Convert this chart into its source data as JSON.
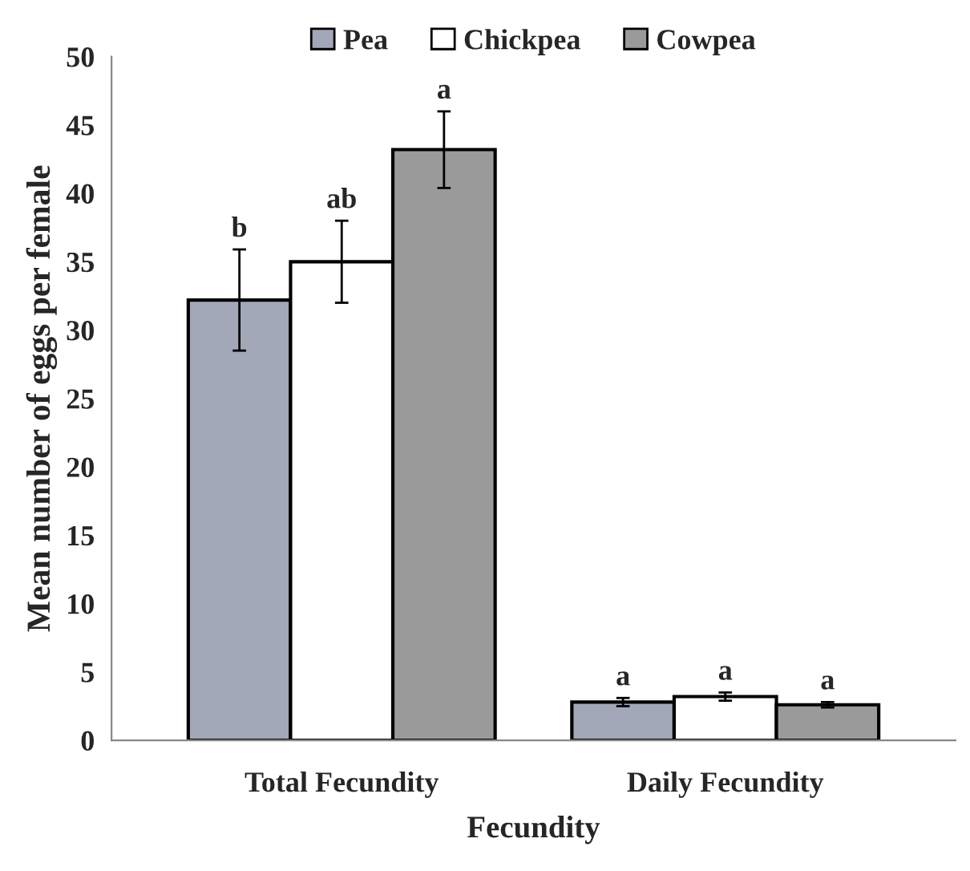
{
  "chart_data": {
    "type": "bar",
    "categories": [
      "Total Fecundity",
      "Daily Fecundity"
    ],
    "series": [
      {
        "name": "Pea",
        "color": "#a3a8b8",
        "values": [
          32.2,
          2.8
        ],
        "errors": [
          3.7,
          0.3
        ]
      },
      {
        "name": "Chickpea",
        "color": "#ffffff",
        "values": [
          35.0,
          3.2
        ],
        "errors": [
          3.0,
          0.3
        ]
      },
      {
        "name": "Cowpea",
        "color": "#9a9a9a",
        "values": [
          43.2,
          2.6
        ],
        "errors": [
          2.8,
          0.2
        ]
      }
    ],
    "xlabel": "Fecundity",
    "ylabel": "Mean number of eggs per female",
    "ylim": [
      0,
      50
    ],
    "yticks": [
      0,
      5,
      10,
      15,
      20,
      25,
      30,
      35,
      40,
      45,
      50
    ],
    "annotations": [
      "b",
      "ab",
      "a",
      "a",
      "a",
      "a"
    ],
    "legend": "top",
    "grid": false
  }
}
